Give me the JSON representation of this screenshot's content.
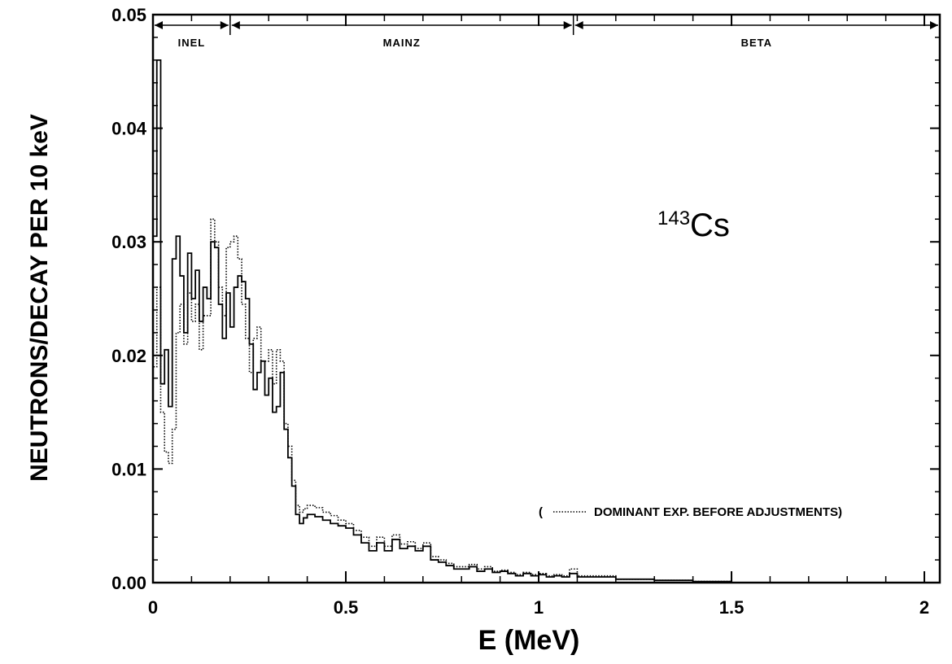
{
  "chart_data": {
    "type": "line",
    "title": "",
    "xlabel": "E  (MeV)",
    "ylabel": "NEUTRONS/DECAY PER 10 keV",
    "xlim": [
      0,
      2.04
    ],
    "ylim": [
      0,
      0.05
    ],
    "x_ticks": [
      0,
      0.5,
      1,
      1.5,
      2
    ],
    "x_tick_labels": [
      "0",
      "0.5",
      "1",
      "1.5",
      "2"
    ],
    "y_ticks": [
      0,
      0.01,
      0.02,
      0.03,
      0.04,
      0.05
    ],
    "y_tick_labels": [
      "0.00",
      "0.01",
      "0.02",
      "0.03",
      "0.04",
      "0.05"
    ],
    "grid": false,
    "isotope_label": {
      "mass": "143",
      "element": "Cs"
    },
    "regions": [
      {
        "label": "INEL",
        "start": 0,
        "end": 0.2
      },
      {
        "label": "MAINZ",
        "start": 0.2,
        "end": 1.09
      },
      {
        "label": "BETA",
        "start": 1.09,
        "end": 2.04
      }
    ],
    "legend": {
      "open": "(",
      "text": "DOMINANT EXP. BEFORE ADJUSTMENTS)",
      "placement": "right"
    },
    "series": [
      {
        "style": "solid",
        "x": [
          0,
          0.01,
          0.02,
          0.03,
          0.04,
          0.05,
          0.06,
          0.07,
          0.08,
          0.09,
          0.1,
          0.11,
          0.12,
          0.13,
          0.14,
          0.15,
          0.16,
          0.17,
          0.18,
          0.19,
          0.2,
          0.21,
          0.22,
          0.23,
          0.24,
          0.25,
          0.26,
          0.27,
          0.28,
          0.29,
          0.3,
          0.31,
          0.32,
          0.33,
          0.34,
          0.35,
          0.36,
          0.37,
          0.38,
          0.39,
          0.4,
          0.42,
          0.44,
          0.46,
          0.48,
          0.5,
          0.52,
          0.54,
          0.56,
          0.58,
          0.6,
          0.62,
          0.64,
          0.66,
          0.68,
          0.7,
          0.72,
          0.74,
          0.76,
          0.78,
          0.8,
          0.82,
          0.84,
          0.86,
          0.88,
          0.9,
          0.92,
          0.94,
          0.96,
          0.98,
          1.0,
          1.02,
          1.04,
          1.06,
          1.08,
          1.1,
          1.2,
          1.3,
          1.4,
          1.5
        ],
        "values": [
          0.0305,
          0.046,
          0.0175,
          0.0205,
          0.0155,
          0.0285,
          0.0305,
          0.027,
          0.022,
          0.029,
          0.025,
          0.0275,
          0.023,
          0.026,
          0.025,
          0.03,
          0.0295,
          0.0245,
          0.0215,
          0.0255,
          0.0225,
          0.026,
          0.027,
          0.0265,
          0.025,
          0.021,
          0.017,
          0.0185,
          0.0195,
          0.0165,
          0.018,
          0.015,
          0.0155,
          0.0185,
          0.0135,
          0.011,
          0.0085,
          0.006,
          0.0052,
          0.0057,
          0.006,
          0.0058,
          0.0055,
          0.0052,
          0.005,
          0.0048,
          0.0042,
          0.0035,
          0.0028,
          0.0035,
          0.0028,
          0.0038,
          0.003,
          0.0032,
          0.0028,
          0.0032,
          0.002,
          0.0018,
          0.0015,
          0.0012,
          0.0012,
          0.0014,
          0.001,
          0.0012,
          0.0009,
          0.001,
          0.0008,
          0.0006,
          0.0008,
          0.0006,
          0.0007,
          0.0005,
          0.0006,
          0.0005,
          0.0008,
          0.0005,
          0.0003,
          0.0002,
          0.0001,
          0
        ]
      },
      {
        "style": "dotted",
        "x": [
          0,
          0.01,
          0.02,
          0.03,
          0.04,
          0.05,
          0.06,
          0.07,
          0.08,
          0.09,
          0.1,
          0.11,
          0.12,
          0.13,
          0.14,
          0.15,
          0.16,
          0.17,
          0.18,
          0.19,
          0.2,
          0.21,
          0.22,
          0.23,
          0.24,
          0.25,
          0.26,
          0.27,
          0.28,
          0.29,
          0.3,
          0.31,
          0.32,
          0.33,
          0.34,
          0.35,
          0.36,
          0.37,
          0.38,
          0.39,
          0.4,
          0.42,
          0.44,
          0.46,
          0.48,
          0.5,
          0.52,
          0.54,
          0.56,
          0.58,
          0.6,
          0.62,
          0.64,
          0.66,
          0.68,
          0.7,
          0.72,
          0.74,
          0.76,
          0.78,
          0.8,
          0.82,
          0.84,
          0.86,
          0.88,
          0.9,
          0.92,
          0.94,
          0.96,
          0.98,
          1.0,
          1.02,
          1.04,
          1.06,
          1.08,
          1.1,
          1.2,
          1.3,
          1.4,
          1.5
        ],
        "values": [
          0.019,
          0.026,
          0.015,
          0.0115,
          0.0105,
          0.0135,
          0.022,
          0.0245,
          0.021,
          0.0255,
          0.023,
          0.0245,
          0.0205,
          0.0235,
          0.0235,
          0.032,
          0.03,
          0.026,
          0.0235,
          0.0295,
          0.03,
          0.0305,
          0.0285,
          0.0245,
          0.0215,
          0.0185,
          0.0215,
          0.0225,
          0.0195,
          0.0195,
          0.0205,
          0.0175,
          0.0205,
          0.0195,
          0.014,
          0.012,
          0.009,
          0.0068,
          0.0062,
          0.0065,
          0.0068,
          0.0066,
          0.0062,
          0.0059,
          0.0055,
          0.0052,
          0.0046,
          0.004,
          0.0032,
          0.004,
          0.0032,
          0.0042,
          0.0034,
          0.0036,
          0.003,
          0.0035,
          0.0023,
          0.002,
          0.0017,
          0.0014,
          0.0014,
          0.0016,
          0.0012,
          0.0014,
          0.001,
          0.0011,
          0.0009,
          0.0007,
          0.0009,
          0.0007,
          0.0008,
          0.0006,
          0.0007,
          0.0006,
          0.0012,
          0.0006,
          0.0003,
          0.0002,
          0.0001,
          0
        ]
      }
    ]
  }
}
